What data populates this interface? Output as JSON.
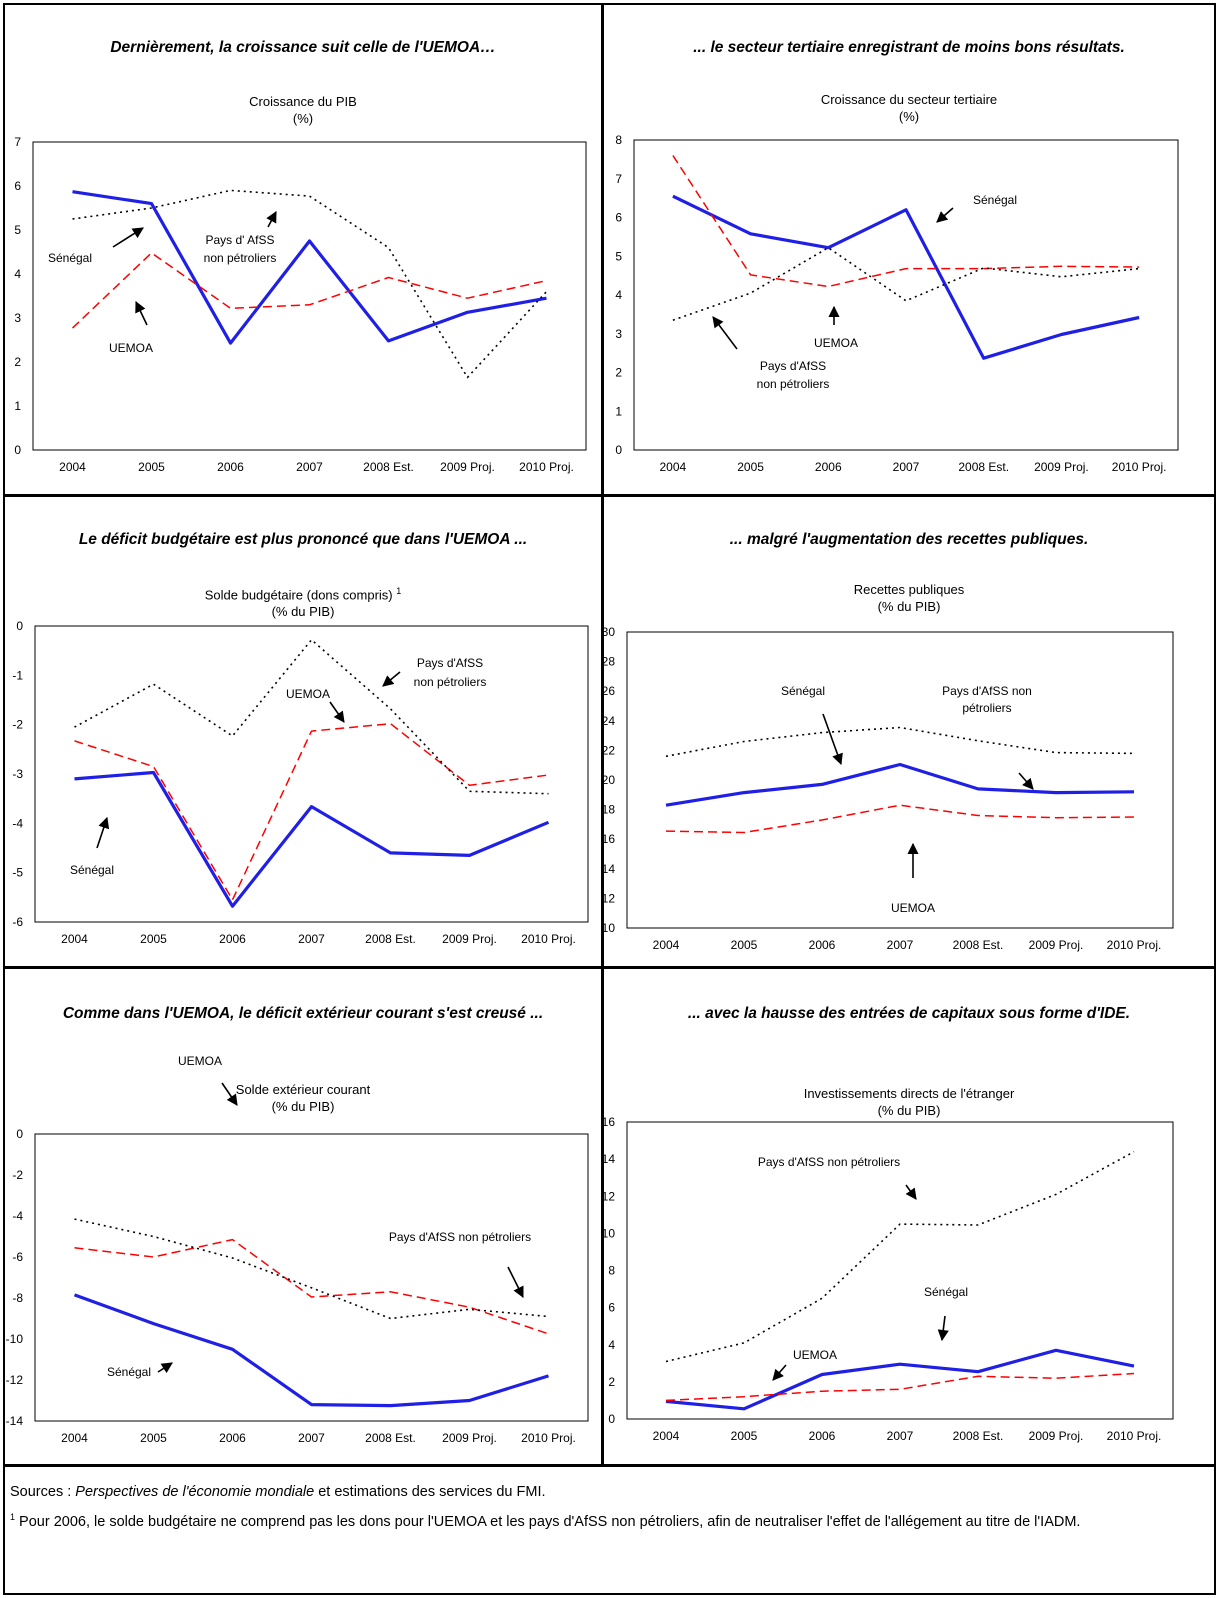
{
  "colors": {
    "senegal": "#1f1fe6",
    "uemoa": "#ff0000",
    "afss": "#000000"
  },
  "panels": [
    {
      "headline": "Dernièrement, la croissance suit celle de l'UEMOA…",
      "title": "Croissance du PIB",
      "unit": "(%)"
    },
    {
      "headline": "... le secteur tertiaire enregistrant de moins bons résultats.",
      "title": "Croissance du secteur tertiaire",
      "unit": "(%)"
    },
    {
      "headline": "Le déficit budgétaire est plus prononcé que dans l'UEMOA ...",
      "title": "Solde budgétaire (dons compris)",
      "title_sup": "1",
      "unit": "(% du PIB)"
    },
    {
      "headline": "... malgré l'augmentation des recettes publiques.",
      "title": "Recettes publiques",
      "unit": "(% du PIB)"
    },
    {
      "headline": "Comme dans l'UEMOA, le déficit extérieur courant s'est creusé ...",
      "title": "Solde extérieur courant",
      "unit": "(% du PIB)"
    },
    {
      "headline": "... avec la hausse des entrées de capitaux sous forme d'IDE.",
      "title": "Investissements directs de l'étranger",
      "unit": "(% du PIB)"
    }
  ],
  "chart_data": [
    {
      "type": "line",
      "categories": [
        "2004",
        "2005",
        "2006",
        "2007",
        "2008 Est.",
        "2009 Proj.",
        "2010 Proj."
      ],
      "ylim": [
        0,
        7
      ],
      "yticks": [
        0,
        1,
        2,
        3,
        4,
        5,
        6,
        7
      ],
      "series": [
        {
          "name": "Sénégal",
          "style": "solid",
          "values": [
            5.87,
            5.6,
            2.43,
            4.75,
            2.48,
            3.13,
            3.45
          ]
        },
        {
          "name": "UEMOA",
          "style": "dashed",
          "values": [
            2.77,
            4.48,
            3.22,
            3.3,
            3.92,
            3.45,
            3.85
          ]
        },
        {
          "name": "Pays d' AfSS non pétroliers",
          "style": "dotted",
          "values": [
            5.25,
            5.5,
            5.9,
            5.77,
            4.6,
            1.65,
            3.6
          ]
        }
      ],
      "annotations": [
        "Sénégal",
        "Pays d' AfSS",
        "non pétroliers",
        "UEMOA"
      ]
    },
    {
      "type": "line",
      "categories": [
        "2004",
        "2005",
        "2006",
        "2007",
        "2008 Est.",
        "2009 Proj.",
        "2010 Proj."
      ],
      "ylim": [
        0,
        8
      ],
      "yticks": [
        0,
        1,
        2,
        3,
        4,
        5,
        6,
        7,
        8
      ],
      "series": [
        {
          "name": "Sénégal",
          "style": "solid",
          "values": [
            6.55,
            5.58,
            5.22,
            6.2,
            2.37,
            2.98,
            3.42
          ]
        },
        {
          "name": "UEMOA",
          "style": "dashed",
          "values": [
            7.6,
            4.52,
            4.22,
            4.68,
            4.68,
            4.74,
            4.72
          ]
        },
        {
          "name": "Pays d'AfSS non pétroliers",
          "style": "dotted",
          "values": [
            3.35,
            4.05,
            5.22,
            3.85,
            4.7,
            4.47,
            4.68
          ]
        }
      ],
      "annotations": [
        "Sénégal",
        "UEMOA",
        "Pays d'AfSS",
        "non pétroliers"
      ]
    },
    {
      "type": "line",
      "categories": [
        "2004",
        "2005",
        "2006",
        "2007",
        "2008 Est.",
        "2009 Proj.",
        "2010 Proj."
      ],
      "ylim": [
        -6,
        0
      ],
      "yticks": [
        0,
        -1,
        -2,
        -3,
        -4,
        -5,
        -6
      ],
      "series": [
        {
          "name": "Sénégal",
          "style": "solid",
          "values": [
            -3.1,
            -2.97,
            -5.68,
            -3.66,
            -4.6,
            -4.65,
            -3.98
          ]
        },
        {
          "name": "UEMOA",
          "style": "dashed",
          "values": [
            -2.33,
            -2.85,
            -5.55,
            -2.13,
            -1.98,
            -3.23,
            -3.02
          ]
        },
        {
          "name": "Pays d'AfSS non pétroliers",
          "style": "dotted",
          "values": [
            -2.05,
            -1.18,
            -2.23,
            -0.28,
            -1.68,
            -3.35,
            -3.4
          ]
        }
      ],
      "annotations": [
        "Pays d'AfSS",
        "non pétroliers",
        "UEMOA",
        "Sénégal"
      ]
    },
    {
      "type": "line",
      "categories": [
        "2004",
        "2005",
        "2006",
        "2007",
        "2008 Est.",
        "2009 Proj.",
        "2010 Proj."
      ],
      "ylim": [
        10,
        30
      ],
      "yticks": [
        10,
        12,
        14,
        16,
        18,
        20,
        22,
        24,
        26,
        28,
        30
      ],
      "series": [
        {
          "name": "Sénégal",
          "style": "solid",
          "values": [
            18.3,
            19.15,
            19.7,
            21.05,
            19.4,
            19.15,
            19.2
          ]
        },
        {
          "name": "UEMOA",
          "style": "dashed",
          "values": [
            16.55,
            16.45,
            17.3,
            18.3,
            17.6,
            17.45,
            17.5
          ]
        },
        {
          "name": "Pays d'AfSS non pétroliers",
          "style": "dotted",
          "values": [
            21.6,
            22.6,
            23.2,
            23.55,
            22.65,
            21.85,
            21.8
          ]
        }
      ],
      "annotations": [
        "Sénégal",
        "Pays d'AfSS non",
        "pétroliers",
        "UEMOA"
      ]
    },
    {
      "type": "line",
      "categories": [
        "2004",
        "2005",
        "2006",
        "2007",
        "2008 Est.",
        "2009 Proj.",
        "2010 Proj."
      ],
      "ylim": [
        -14,
        0
      ],
      "yticks": [
        0,
        -2,
        -4,
        -6,
        -8,
        -10,
        -12,
        -14
      ],
      "series": [
        {
          "name": "Sénégal",
          "style": "solid",
          "values": [
            -7.85,
            -9.25,
            -10.5,
            -13.2,
            -13.25,
            -13,
            -11.8
          ]
        },
        {
          "name": "UEMOA",
          "style": "dashed",
          "values": [
            -5.55,
            -6,
            -5.15,
            -7.95,
            -7.7,
            -8.45,
            -9.75
          ]
        },
        {
          "name": "Pays d'AfSS non pétroliers",
          "style": "dotted",
          "values": [
            -4.15,
            -5,
            -6.05,
            -7.5,
            -9,
            -8.55,
            -8.9
          ]
        }
      ],
      "annotations": [
        "UEMOA",
        "Pays d'AfSS non pétroliers",
        "Sénégal"
      ]
    },
    {
      "type": "line",
      "categories": [
        "2004",
        "2005",
        "2006",
        "2007",
        "2008 Est.",
        "2009 Proj.",
        "2010 Proj."
      ],
      "ylim": [
        0,
        16
      ],
      "yticks": [
        0,
        2,
        4,
        6,
        8,
        10,
        12,
        14,
        16
      ],
      "series": [
        {
          "name": "Sénégal",
          "style": "solid",
          "values": [
            0.95,
            0.55,
            2.4,
            2.95,
            2.55,
            3.7,
            2.85
          ]
        },
        {
          "name": "UEMOA",
          "style": "dashed",
          "values": [
            1,
            1.2,
            1.5,
            1.6,
            2.3,
            2.2,
            2.45
          ]
        },
        {
          "name": "Pays d'AfSS non pétroliers",
          "style": "dotted",
          "values": [
            3.1,
            4.1,
            6.5,
            10.5,
            10.45,
            12.1,
            14.4
          ]
        }
      ],
      "annotations": [
        "Pays d'AfSS non pétroliers",
        "Sénégal",
        "UEMOA"
      ]
    }
  ],
  "footer": {
    "sources_prefix": "Sources : ",
    "sources_italic": "Perspectives de l'économie mondiale",
    "sources_suffix": "  et estimations des services du FMI.",
    "note_mark": "1",
    "note_text": " Pour 2006, le solde budgétaire ne comprend pas les dons pour l'UEMOA et les pays d'AfSS non pétroliers, afin de neutraliser l'effet de l'allégement au titre de l'IADM."
  }
}
